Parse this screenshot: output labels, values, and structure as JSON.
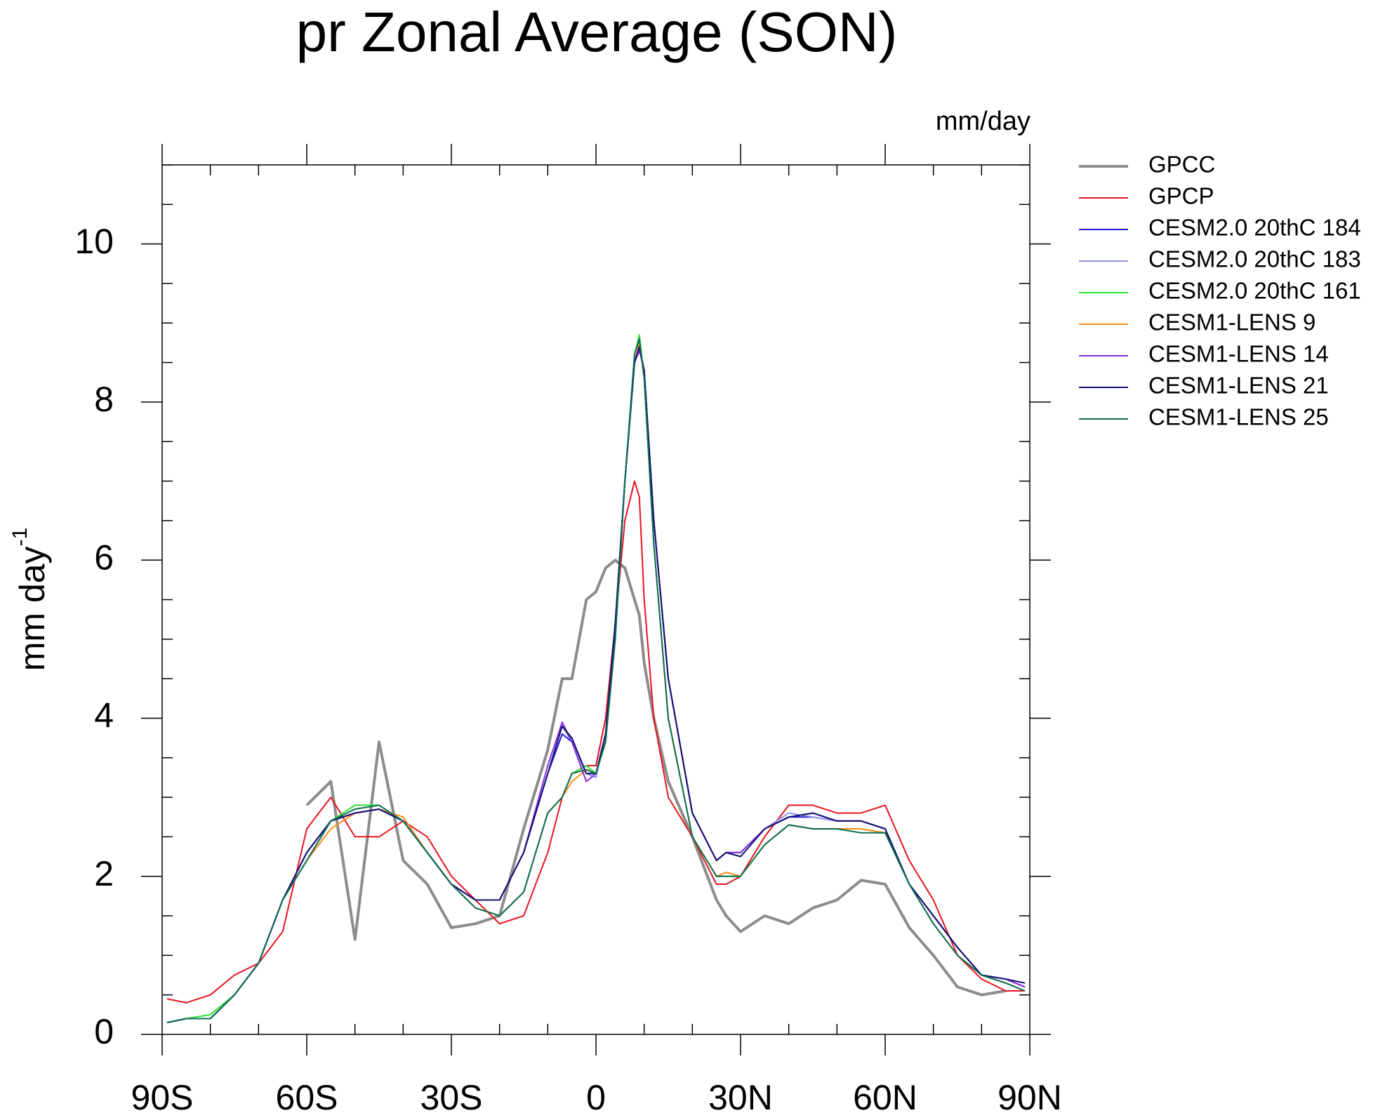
{
  "chart_data": {
    "type": "line",
    "title": "pr Zonal Average (SON)",
    "units": "mm/day",
    "ylabel": "mm day",
    "ylabel_exponent": "-1",
    "xlim": [
      -90,
      90
    ],
    "xticks": [
      {
        "value": -90,
        "label": "90S"
      },
      {
        "value": -60,
        "label": "60S"
      },
      {
        "value": -30,
        "label": "30S"
      },
      0,
      {
        "value": 30,
        "label": "30N"
      },
      {
        "value": 60,
        "label": "60N"
      },
      {
        "value": 90,
        "label": "90N"
      }
    ],
    "ylim": [
      0,
      11
    ],
    "yticks": [
      0,
      2,
      4,
      6,
      8,
      10
    ],
    "legend": "outside-right",
    "x": [
      -89,
      -85,
      -80,
      -75,
      -70,
      -65,
      -60,
      -55,
      -50,
      -45,
      -40,
      -35,
      -30,
      -25,
      -20,
      -15,
      -10,
      -7,
      -5,
      -2,
      0,
      2,
      4,
      6,
      8,
      9,
      10,
      12,
      15,
      20,
      25,
      27,
      30,
      35,
      40,
      45,
      50,
      55,
      60,
      65,
      70,
      75,
      80,
      85,
      89
    ],
    "series": [
      {
        "name": "GPCC",
        "color": "#8c8c8c",
        "values": [
          null,
          null,
          null,
          null,
          null,
          null,
          2.9,
          3.2,
          1.2,
          3.7,
          2.2,
          1.9,
          1.35,
          1.4,
          1.5,
          2.6,
          3.6,
          4.5,
          4.5,
          5.5,
          5.6,
          5.9,
          6.0,
          5.9,
          5.5,
          5.3,
          4.7,
          4.0,
          3.2,
          2.5,
          1.7,
          1.5,
          1.3,
          1.5,
          1.4,
          1.6,
          1.7,
          1.95,
          1.9,
          1.35,
          1.0,
          0.6,
          0.5,
          0.55,
          null
        ]
      },
      {
        "name": "GPCP",
        "color": "#e8141e",
        "values": [
          0.45,
          0.4,
          0.5,
          0.75,
          0.9,
          1.3,
          2.6,
          3.0,
          2.5,
          2.5,
          2.7,
          2.5,
          2.0,
          1.7,
          1.4,
          1.5,
          2.3,
          3.0,
          3.3,
          3.4,
          3.4,
          4.0,
          5.2,
          6.5,
          7.0,
          6.8,
          5.5,
          4.0,
          3.0,
          2.5,
          1.9,
          1.9,
          2.0,
          2.5,
          2.9,
          2.9,
          2.8,
          2.8,
          2.9,
          2.2,
          1.7,
          1.0,
          0.7,
          0.55,
          0.55
        ]
      },
      {
        "name": "CESM2.0 20thC 184",
        "color": "#1c1cd2",
        "values": [
          0.15,
          0.2,
          0.2,
          0.5,
          0.9,
          1.7,
          2.3,
          2.7,
          2.8,
          2.85,
          2.7,
          2.3,
          1.9,
          1.7,
          1.7,
          2.3,
          3.3,
          3.8,
          3.7,
          3.3,
          3.3,
          3.8,
          5.2,
          7.0,
          8.5,
          8.7,
          8.4,
          6.5,
          4.5,
          2.8,
          2.2,
          2.3,
          2.3,
          2.6,
          2.75,
          2.75,
          2.7,
          2.7,
          2.6,
          1.9,
          1.5,
          1.1,
          0.75,
          0.7,
          0.6
        ]
      },
      {
        "name": "CESM2.0 20thC 183",
        "color": "#9090ee",
        "values": [
          0.15,
          0.2,
          0.2,
          0.5,
          0.9,
          1.7,
          2.3,
          2.7,
          2.8,
          2.85,
          2.7,
          2.3,
          1.9,
          1.7,
          1.7,
          2.3,
          3.3,
          3.9,
          3.7,
          3.3,
          3.25,
          3.8,
          5.2,
          7.0,
          8.5,
          8.7,
          8.4,
          6.5,
          4.5,
          2.8,
          2.2,
          2.3,
          2.3,
          2.6,
          2.8,
          2.75,
          2.7,
          2.7,
          2.6,
          1.9,
          1.5,
          1.1,
          0.75,
          0.7,
          0.6
        ]
      },
      {
        "name": "CESM2.0 20thC 161",
        "color": "#2ee02e",
        "values": [
          0.15,
          0.2,
          0.25,
          0.5,
          0.9,
          1.7,
          2.2,
          2.7,
          2.9,
          2.9,
          2.7,
          2.3,
          1.9,
          1.6,
          1.5,
          1.8,
          2.8,
          3.0,
          3.3,
          3.4,
          3.3,
          3.7,
          5.0,
          7.0,
          8.6,
          8.85,
          8.3,
          6.2,
          4.0,
          2.5,
          2.0,
          2.0,
          2.0,
          2.4,
          2.65,
          2.6,
          2.6,
          2.6,
          2.55,
          1.9,
          1.4,
          1.0,
          0.75,
          0.65,
          0.55
        ]
      },
      {
        "name": "CESM1-LENS 9",
        "color": "#ff8c1a",
        "values": [
          0.15,
          0.2,
          0.2,
          0.5,
          0.9,
          1.7,
          2.2,
          2.6,
          2.8,
          2.85,
          2.75,
          2.3,
          1.9,
          1.6,
          1.5,
          1.8,
          2.8,
          3.0,
          3.2,
          3.35,
          3.3,
          3.7,
          5.0,
          7.0,
          8.5,
          8.75,
          8.3,
          6.2,
          4.0,
          2.5,
          2.0,
          2.05,
          2.0,
          2.4,
          2.65,
          2.6,
          2.6,
          2.6,
          2.55,
          1.9,
          1.4,
          1.0,
          0.75,
          0.65,
          0.55
        ]
      },
      {
        "name": "CESM1-LENS 14",
        "color": "#8a2be2",
        "values": [
          0.15,
          0.2,
          0.2,
          0.5,
          0.9,
          1.7,
          2.3,
          2.7,
          2.8,
          2.85,
          2.7,
          2.3,
          1.9,
          1.7,
          1.7,
          2.3,
          3.4,
          3.95,
          3.7,
          3.2,
          3.3,
          3.8,
          5.2,
          7.0,
          8.5,
          8.65,
          8.4,
          6.5,
          4.5,
          2.8,
          2.2,
          2.3,
          2.3,
          2.6,
          2.75,
          2.8,
          2.7,
          2.7,
          2.6,
          1.9,
          1.5,
          1.1,
          0.75,
          0.7,
          0.6
        ]
      },
      {
        "name": "CESM1-LENS 21",
        "color": "#10106e",
        "values": [
          0.15,
          0.2,
          0.2,
          0.5,
          0.9,
          1.7,
          2.3,
          2.7,
          2.8,
          2.85,
          2.7,
          2.3,
          1.9,
          1.7,
          1.7,
          2.3,
          3.3,
          3.9,
          3.75,
          3.3,
          3.3,
          3.8,
          5.2,
          7.0,
          8.5,
          8.7,
          8.4,
          6.5,
          4.5,
          2.8,
          2.2,
          2.3,
          2.25,
          2.6,
          2.75,
          2.8,
          2.7,
          2.7,
          2.6,
          1.9,
          1.5,
          1.1,
          0.75,
          0.7,
          0.65
        ]
      },
      {
        "name": "CESM1-LENS 25",
        "color": "#0b6e55",
        "values": [
          0.15,
          0.2,
          0.2,
          0.5,
          0.9,
          1.7,
          2.2,
          2.7,
          2.85,
          2.9,
          2.7,
          2.3,
          1.9,
          1.6,
          1.5,
          1.8,
          2.8,
          3.0,
          3.3,
          3.35,
          3.3,
          3.7,
          5.0,
          7.0,
          8.6,
          8.8,
          8.3,
          6.2,
          4.0,
          2.5,
          2.0,
          2.0,
          2.0,
          2.4,
          2.65,
          2.6,
          2.6,
          2.55,
          2.55,
          1.9,
          1.4,
          1.0,
          0.75,
          0.65,
          0.55
        ]
      }
    ]
  }
}
